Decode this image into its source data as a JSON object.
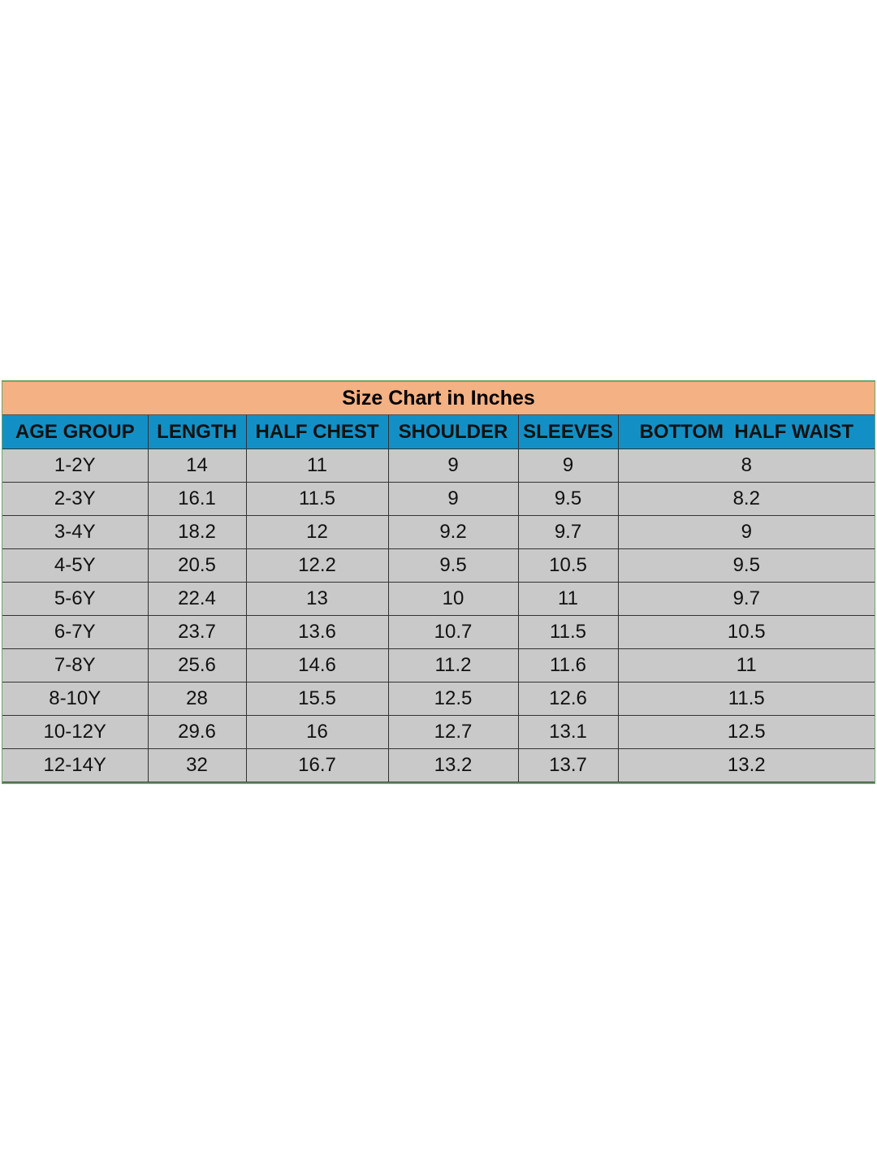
{
  "title": "Size Chart in Inches",
  "table": {
    "header": [
      "AGE GROUP",
      "LENGTH",
      "HALF CHEST",
      "SHOULDER",
      "SLEEVES",
      "BOTTOM  HALF WAIST"
    ],
    "rows": [
      [
        "1-2Y",
        14,
        11,
        9,
        9,
        8
      ],
      [
        "2-3Y",
        16.1,
        11.5,
        9,
        9.5,
        8.2
      ],
      [
        "3-4Y",
        18.2,
        12,
        9.2,
        9.7,
        9
      ],
      [
        "4-5Y",
        20.5,
        12.2,
        9.5,
        10.5,
        9.5
      ],
      [
        "5-6Y",
        22.4,
        13,
        10,
        11,
        9.7
      ],
      [
        "6-7Y",
        23.7,
        13.6,
        10.7,
        11.5,
        10.5
      ],
      [
        "7-8Y",
        25.6,
        14.6,
        11.2,
        11.6,
        11
      ],
      [
        "8-10Y",
        28,
        15.5,
        12.5,
        12.6,
        11.5
      ],
      [
        "10-12Y",
        29.6,
        16,
        12.7,
        13.1,
        12.5
      ],
      [
        "12-14Y",
        32,
        16.7,
        13.2,
        13.7,
        13.2
      ]
    ]
  }
}
